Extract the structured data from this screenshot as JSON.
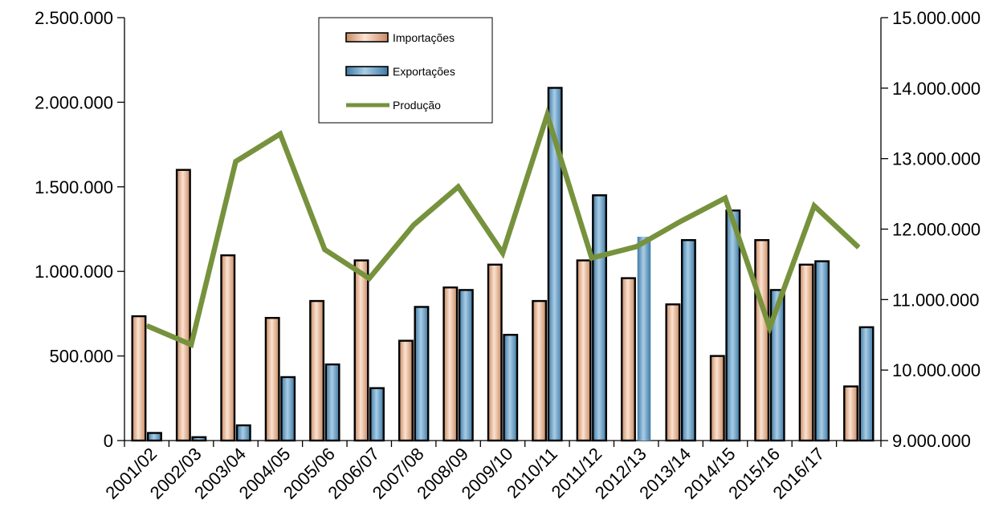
{
  "chart_data": {
    "type": "bar",
    "categories": [
      "2001/02",
      "2002/03",
      "2003/04",
      "2004/05",
      "2005/06",
      "2006/07",
      "2007/08",
      "2008/09",
      "2009/10",
      "2010/11",
      "2011/12",
      "2012/13",
      "2013/14",
      "2014/15",
      "2015/16",
      "2016/17",
      ""
    ],
    "series": [
      {
        "name": "Importações",
        "axis": "left",
        "type": "bar",
        "color": "#e8b28e",
        "values": [
          735000,
          1600000,
          1095000,
          725000,
          825000,
          1065000,
          590000,
          905000,
          1040000,
          825000,
          1065000,
          960000,
          805000,
          500000,
          1185000,
          1040000,
          320000
        ]
      },
      {
        "name": "Exportações",
        "axis": "left",
        "type": "bar",
        "color": "#6fa3c8",
        "values": [
          45000,
          20000,
          90000,
          375000,
          450000,
          310000,
          790000,
          890000,
          625000,
          2085000,
          1450000,
          1205000,
          1185000,
          1360000,
          890000,
          1060000,
          670000
        ]
      },
      {
        "name": "Produção",
        "axis": "right",
        "type": "line",
        "color": "#77923c",
        "values": [
          10630000,
          10360000,
          12960000,
          13350000,
          11710000,
          11300000,
          12060000,
          12600000,
          11660000,
          13620000,
          11590000,
          11750000,
          12110000,
          12440000,
          10600000,
          12330000,
          11740000
        ]
      }
    ],
    "y_left": {
      "min": 0,
      "max": 2500000,
      "ticks": [
        0,
        500000,
        1000000,
        1500000,
        2000000,
        2500000
      ],
      "tick_labels": [
        "0",
        "500.000",
        "1.000.000",
        "1.500.000",
        "2.000.000",
        "2.500.000"
      ]
    },
    "y_right": {
      "min": 9000000,
      "max": 15000000,
      "ticks": [
        9000000,
        10000000,
        11000000,
        12000000,
        13000000,
        14000000,
        15000000
      ],
      "tick_labels": [
        "9.000.000",
        "10.000.000",
        "11.000.000",
        "12.000.000",
        "13.000.000",
        "14.000.000",
        "15.000.000"
      ]
    },
    "title": "",
    "xlabel": "",
    "ylabel": "",
    "grid": false,
    "legend_position": "top-center"
  }
}
